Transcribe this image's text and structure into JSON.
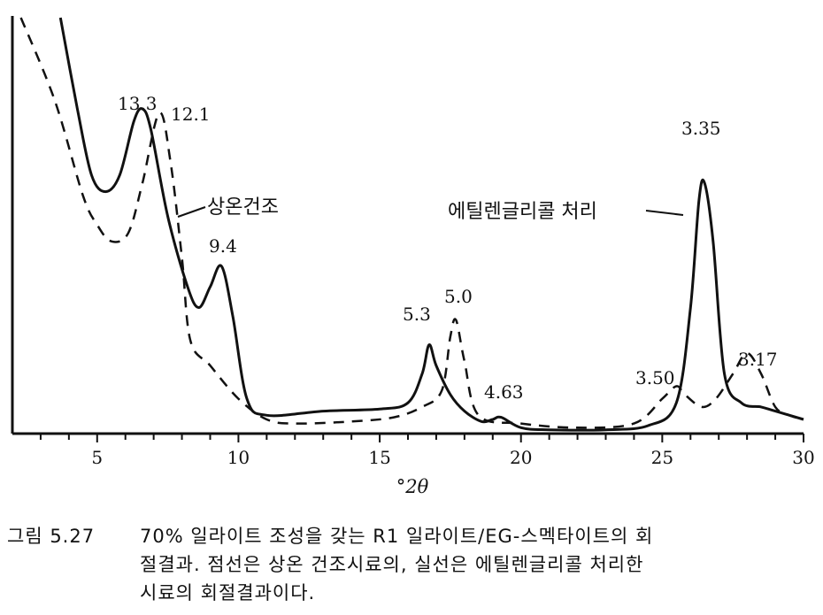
{
  "chart_data": {
    "type": "line",
    "xlabel": "°2θ",
    "xlim": [
      2,
      30
    ],
    "x_ticks": [
      5,
      10,
      15,
      20,
      25,
      30
    ],
    "ylim": [
      0,
      100
    ],
    "series": [
      {
        "name": "에틸렌글리콜 처리",
        "style": "solid",
        "points": [
          [
            3.7,
            100
          ],
          [
            4.3,
            78
          ],
          [
            4.8,
            62
          ],
          [
            5.3,
            58
          ],
          [
            5.8,
            62
          ],
          [
            6.3,
            75
          ],
          [
            6.6,
            78
          ],
          [
            6.9,
            73
          ],
          [
            7.5,
            52
          ],
          [
            8.2,
            35
          ],
          [
            8.6,
            30
          ],
          [
            9.0,
            35
          ],
          [
            9.4,
            40
          ],
          [
            9.8,
            28
          ],
          [
            10.3,
            8
          ],
          [
            11,
            4
          ],
          [
            13,
            5
          ],
          [
            15,
            5.5
          ],
          [
            16,
            7
          ],
          [
            16.5,
            14
          ],
          [
            16.75,
            21
          ],
          [
            17.0,
            16
          ],
          [
            17.5,
            9
          ],
          [
            18.0,
            5
          ],
          [
            18.6,
            2.5
          ],
          [
            19.0,
            3
          ],
          [
            19.3,
            3.5
          ],
          [
            20,
            1
          ],
          [
            21,
            0.5
          ],
          [
            23,
            0.5
          ],
          [
            24.5,
            1.5
          ],
          [
            25.5,
            7
          ],
          [
            26.0,
            30
          ],
          [
            26.3,
            56
          ],
          [
            26.5,
            60
          ],
          [
            26.8,
            46
          ],
          [
            27.2,
            14
          ],
          [
            27.8,
            7
          ],
          [
            28.5,
            6
          ],
          [
            29,
            5
          ],
          [
            30,
            3
          ]
        ]
      },
      {
        "name": "상온건조",
        "style": "dashed",
        "points": [
          [
            2.3,
            100
          ],
          [
            3.5,
            80
          ],
          [
            4.5,
            57
          ],
          [
            5.0,
            50
          ],
          [
            5.5,
            46
          ],
          [
            6.1,
            48
          ],
          [
            6.6,
            60
          ],
          [
            7.2,
            77
          ],
          [
            7.6,
            65
          ],
          [
            8.0,
            42
          ],
          [
            8.3,
            22
          ],
          [
            9.0,
            16
          ],
          [
            10,
            8
          ],
          [
            11,
            3
          ],
          [
            12,
            2
          ],
          [
            14,
            2.5
          ],
          [
            15.5,
            3.5
          ],
          [
            16.5,
            6
          ],
          [
            17.2,
            10
          ],
          [
            17.5,
            23
          ],
          [
            17.7,
            27
          ],
          [
            18.0,
            17
          ],
          [
            18.5,
            4
          ],
          [
            20,
            2
          ],
          [
            22,
            1
          ],
          [
            24,
            2
          ],
          [
            25.0,
            8
          ],
          [
            25.5,
            11
          ],
          [
            25.8,
            9
          ],
          [
            26.4,
            6
          ],
          [
            26.9,
            8
          ],
          [
            27.5,
            14
          ],
          [
            28.0,
            19
          ],
          [
            28.5,
            14
          ],
          [
            29,
            6
          ],
          [
            29.5,
            4
          ],
          [
            30,
            3
          ]
        ]
      }
    ],
    "annotations": [
      "13.3",
      "12.1",
      "9.4",
      "5.3",
      "5.0",
      "4.63",
      "3.50",
      "3.35",
      "3.17"
    ]
  },
  "caption": {
    "number": "그림 5.27",
    "lines": [
      "70% 일라이트 조성을 갖는 R1 일라이트/EG-스멕타이트의 회",
      "절결과. 점선은 상온 건조시료의, 실선은 에틸렌글리콜 처리한",
      "시료의 회절결과이다."
    ]
  }
}
